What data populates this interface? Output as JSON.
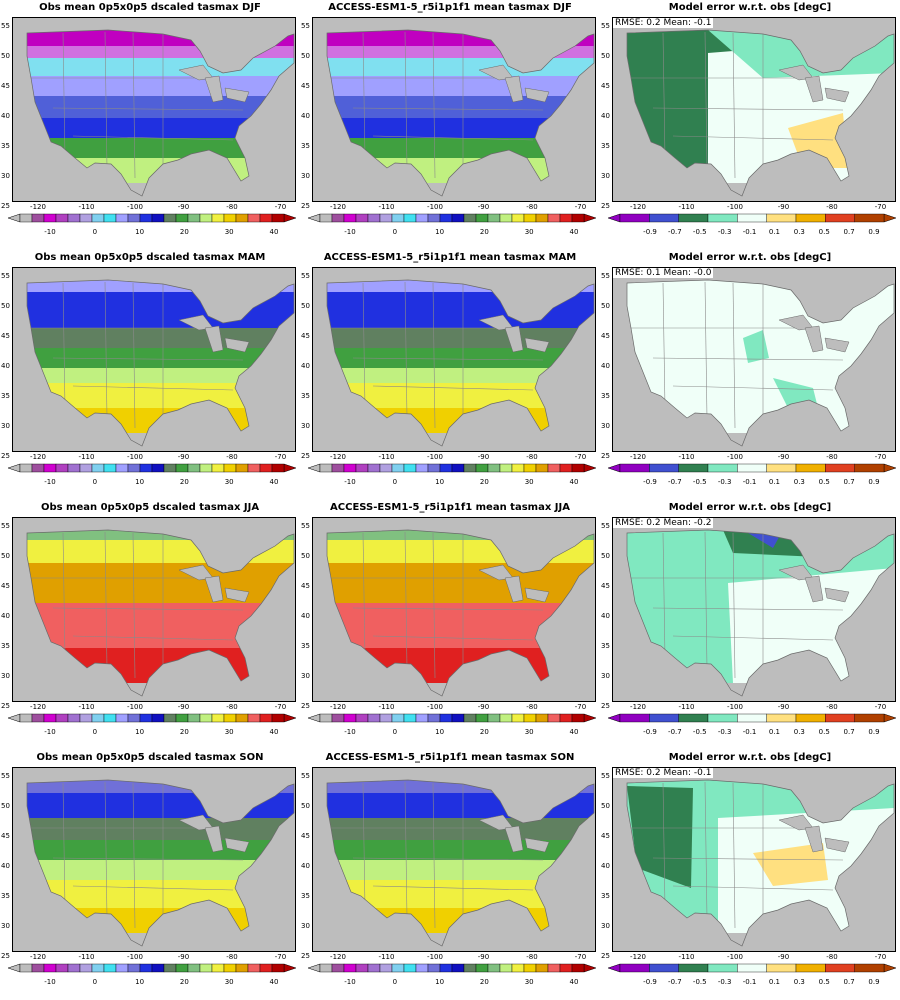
{
  "rows": [
    {
      "season": "DJF",
      "obs_title": "Obs mean 0p5x0p5 dscaled tasmax DJF",
      "model_title": "ACCESS-ESM1-5_r5i1p1f1 mean tasmax DJF",
      "error_title": "Model error w.r.t. obs [degC]",
      "stats": "RMSE: 0.2   Mean: -0.1",
      "obs_scheme": "djf",
      "err_scheme": "djf_err"
    },
    {
      "season": "MAM",
      "obs_title": "Obs mean 0p5x0p5 dscaled tasmax MAM",
      "model_title": "ACCESS-ESM1-5_r5i1p1f1 mean tasmax MAM",
      "error_title": "Model error w.r.t. obs [degC]",
      "stats": "RMSE: 0.1   Mean: -0.0",
      "obs_scheme": "mam",
      "err_scheme": "mam_err"
    },
    {
      "season": "JJA",
      "obs_title": "Obs mean 0p5x0p5 dscaled tasmax JJA",
      "model_title": "ACCESS-ESM1-5_r5i1p1f1 mean tasmax JJA",
      "error_title": "Model error w.r.t. obs [degC]",
      "stats": "RMSE: 0.2   Mean: -0.2",
      "obs_scheme": "jja",
      "err_scheme": "jja_err"
    },
    {
      "season": "SON",
      "obs_title": "Obs mean 0p5x0p5 dscaled tasmax SON",
      "model_title": "ACCESS-ESM1-5_r5i1p1f1 mean tasmax SON",
      "error_title": "Model error w.r.t. obs [degC]",
      "stats": "RMSE: 0.2   Mean: -0.1",
      "obs_scheme": "son",
      "err_scheme": "son_err"
    }
  ],
  "lat_ticks": [
    "55",
    "50",
    "45",
    "40",
    "35",
    "30",
    "25"
  ],
  "lon_ticks": [
    "-120",
    "-110",
    "-100",
    "-90",
    "-80",
    "-70"
  ],
  "temp_colorbar": {
    "labels": [
      "-10",
      "0",
      "10",
      "20",
      "30",
      "40"
    ],
    "colors": [
      "#bdbdbd",
      "#9e4f9e",
      "#d000d0",
      "#b040c0",
      "#a070d0",
      "#b0a0e0",
      "#80d0f0",
      "#40e0f0",
      "#a0a0ff",
      "#7070d8",
      "#2030e0",
      "#1010c0",
      "#608060",
      "#40a040",
      "#80c080",
      "#c0f080",
      "#f0f040",
      "#f0d000",
      "#e0a000",
      "#f06060",
      "#e02020",
      "#b00000"
    ]
  },
  "err_colorbar": {
    "labels": [
      "-0.9",
      "-0.7",
      "-0.5",
      "-0.3",
      "-0.1",
      "0.1",
      "0.3",
      "0.5",
      "0.7",
      "0.9"
    ],
    "colors": [
      "#9000c0",
      "#4050d0",
      "#308050",
      "#80e8c0",
      "#f0fff8",
      "#ffe080",
      "#f0b000",
      "#e04020",
      "#b04000"
    ]
  },
  "colors": {
    "ocean": "#bdbdbd",
    "land_dark": "#7070d8"
  }
}
